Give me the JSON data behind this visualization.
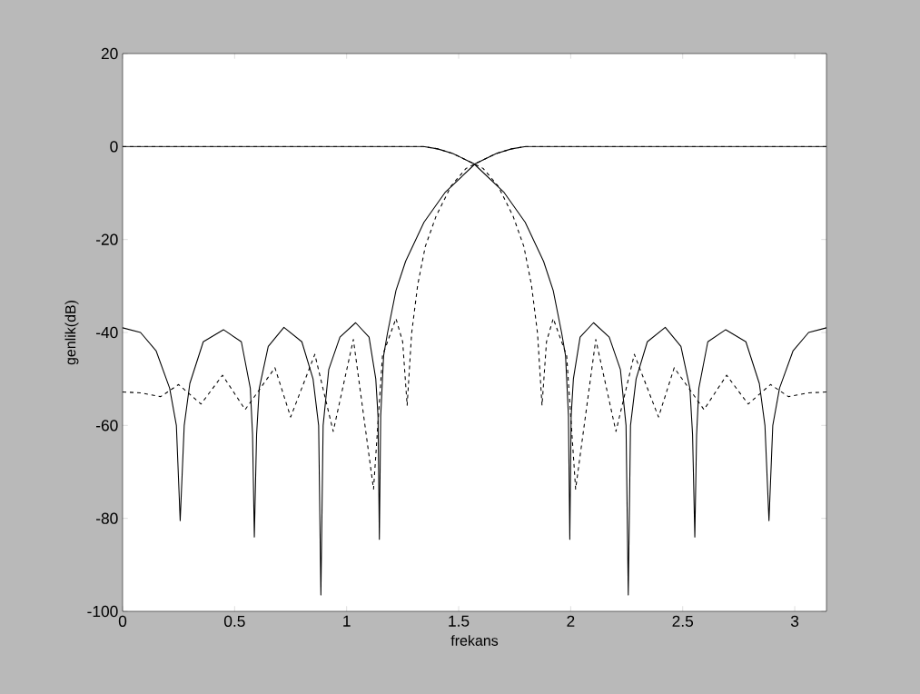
{
  "chart_data": {
    "type": "line",
    "xlabel": "frekans",
    "ylabel": "genlik(dB)",
    "xlim": [
      0,
      3.1416
    ],
    "ylim": [
      -100,
      20
    ],
    "xticks": [
      0,
      0.5,
      1,
      1.5,
      2,
      2.5,
      3
    ],
    "yticks": [
      -100,
      -80,
      -60,
      -40,
      -20,
      0,
      20
    ],
    "series": [
      {
        "color": "#000000",
        "line_style": "solid",
        "x": [
          0,
          0.08,
          0.15,
          0.21,
          0.24,
          0.257,
          0.275,
          0.3,
          0.36,
          0.45,
          0.53,
          0.57,
          0.58,
          0.588,
          0.598,
          0.61,
          0.65,
          0.72,
          0.8,
          0.85,
          0.875,
          0.885,
          0.895,
          0.92,
          0.97,
          1.04,
          1.1,
          1.13,
          1.14,
          1.146,
          1.152,
          1.165,
          1.182,
          1.22,
          1.263,
          1.345,
          1.439,
          1.574,
          1.668,
          1.736,
          1.8,
          3.1416
        ],
        "values": [
          -39,
          -40,
          -44,
          -52,
          -60,
          -80.5,
          -60,
          -51,
          -42,
          -39.4,
          -42,
          -52,
          -62,
          -84,
          -62,
          -52,
          -43,
          -38.9,
          -42,
          -50,
          -60,
          -96.5,
          -60,
          -48,
          -41,
          -37.9,
          -41,
          -50,
          -58,
          -84.5,
          -58,
          -45,
          -40.2,
          -31,
          -24.7,
          -16.3,
          -9.9,
          -3.7,
          -1.5,
          -0.5,
          0,
          0
        ]
      },
      {
        "color": "#000000",
        "line_style": "solid",
        "x": [
          0,
          1.342,
          1.406,
          1.474,
          1.568,
          1.703,
          1.797,
          1.879,
          1.922,
          1.96,
          1.977,
          1.99,
          1.996,
          2.002,
          2.012,
          2.042,
          2.102,
          2.172,
          2.222,
          2.247,
          2.257,
          2.267,
          2.292,
          2.342,
          2.422,
          2.492,
          2.532,
          2.544,
          2.554,
          2.562,
          2.572,
          2.612,
          2.692,
          2.782,
          2.842,
          2.867,
          2.885,
          2.902,
          2.932,
          2.992,
          3.062,
          3.1416
        ],
        "values": [
          0,
          0,
          -0.5,
          -1.5,
          -3.7,
          -9.9,
          -16.3,
          -24.7,
          -31,
          -40.2,
          -45,
          -58,
          -84.5,
          -58,
          -50,
          -41,
          -37.9,
          -41,
          -48,
          -60,
          -96.5,
          -60,
          -50,
          -42,
          -38.9,
          -43,
          -52,
          -62,
          -84,
          -62,
          -52,
          -42,
          -39.4,
          -42,
          -51,
          -60,
          -80.5,
          -60,
          -52,
          -44,
          -40,
          -39
        ]
      },
      {
        "color": "#000000",
        "line_style": "dashed",
        "x": [
          0,
          0.08,
          0.17,
          0.25,
          0.35,
          0.446,
          0.547,
          0.68,
          0.75,
          0.858,
          0.94,
          1.03,
          1.12,
          1.16,
          1.22,
          1.25,
          1.27,
          1.29,
          1.317,
          1.351,
          1.399,
          1.466,
          1.533,
          1.574,
          1.668,
          1.736,
          1.8,
          3.1416
        ],
        "values": [
          -52.8,
          -53,
          -53.8,
          -51.2,
          -55.4,
          -49.2,
          -56.6,
          -47.6,
          -58.2,
          -44.7,
          -61.3,
          -41.5,
          -73.7,
          -45,
          -37,
          -42,
          -55.7,
          -40.2,
          -29.8,
          -21.5,
          -15,
          -8.5,
          -4.7,
          -3.7,
          -1.5,
          -0.5,
          0,
          0
        ]
      },
      {
        "color": "#000000",
        "line_style": "dashed",
        "x": [
          0,
          1.342,
          1.406,
          1.474,
          1.568,
          1.609,
          1.676,
          1.743,
          1.791,
          1.825,
          1.852,
          1.872,
          1.892,
          1.922,
          1.982,
          2.022,
          2.112,
          2.202,
          2.284,
          2.392,
          2.462,
          2.595,
          2.696,
          2.792,
          2.892,
          2.972,
          3.062,
          3.1416
        ],
        "values": [
          0,
          0,
          -0.5,
          -1.5,
          -3.7,
          -4.7,
          -8.5,
          -15,
          -21.5,
          -29.8,
          -40.2,
          -55.7,
          -42,
          -37,
          -45,
          -73.7,
          -41.5,
          -61.3,
          -44.7,
          -58.2,
          -47.6,
          -56.6,
          -49.2,
          -55.4,
          -51.2,
          -53.8,
          -53,
          -52.8
        ]
      }
    ]
  }
}
